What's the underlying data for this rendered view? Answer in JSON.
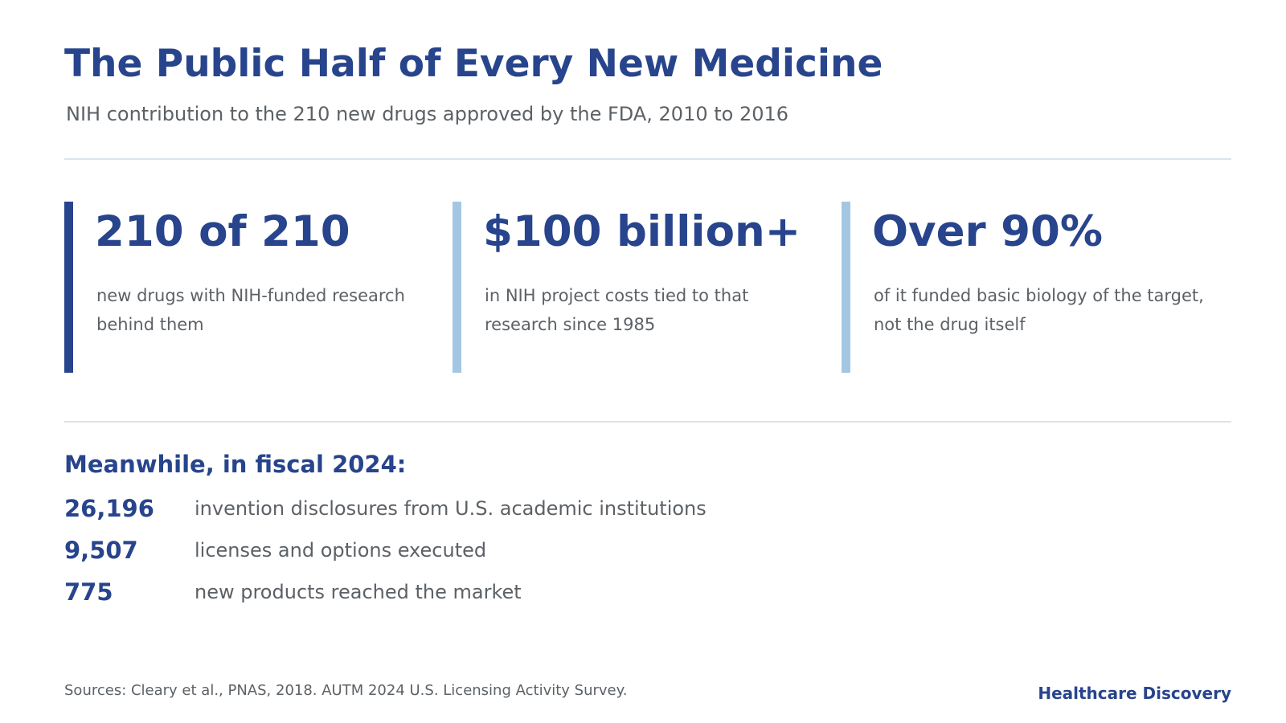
{
  "header": {
    "title": "The Public Half of Every New Medicine",
    "subtitle": "NIH contribution to the 210 new drugs approved by the FDA, 2010 to 2016"
  },
  "colors": {
    "accent_dark": "#27448c",
    "accent_light": "#a3c7e3",
    "text_muted": "#5c6166",
    "divider": "#dbe3ec"
  },
  "stats": [
    {
      "value": "210 of 210",
      "description": "new drugs with NIH-funded research behind them",
      "bar_color": "#27448c"
    },
    {
      "value": "$100 billion+",
      "description": "in NIH project costs tied to that research since 1985",
      "bar_color": "#a3c7e3"
    },
    {
      "value": "Over 90%",
      "description": "of it funded basic biology of the target, not the drug itself",
      "bar_color": "#a3c7e3"
    }
  ],
  "fiscal_section": {
    "heading": "Meanwhile, in fiscal 2024:",
    "rows": [
      {
        "value": "26,196",
        "label": "invention disclosures from U.S. academic institutions"
      },
      {
        "value": "9,507",
        "label": "licenses and options executed"
      },
      {
        "value": "775",
        "label": "new products reached the market"
      }
    ]
  },
  "footer": {
    "sources": "Sources: Cleary et al., PNAS, 2018. AUTM 2024 U.S. Licensing Activity Survey.",
    "brand": "Healthcare Discovery"
  }
}
